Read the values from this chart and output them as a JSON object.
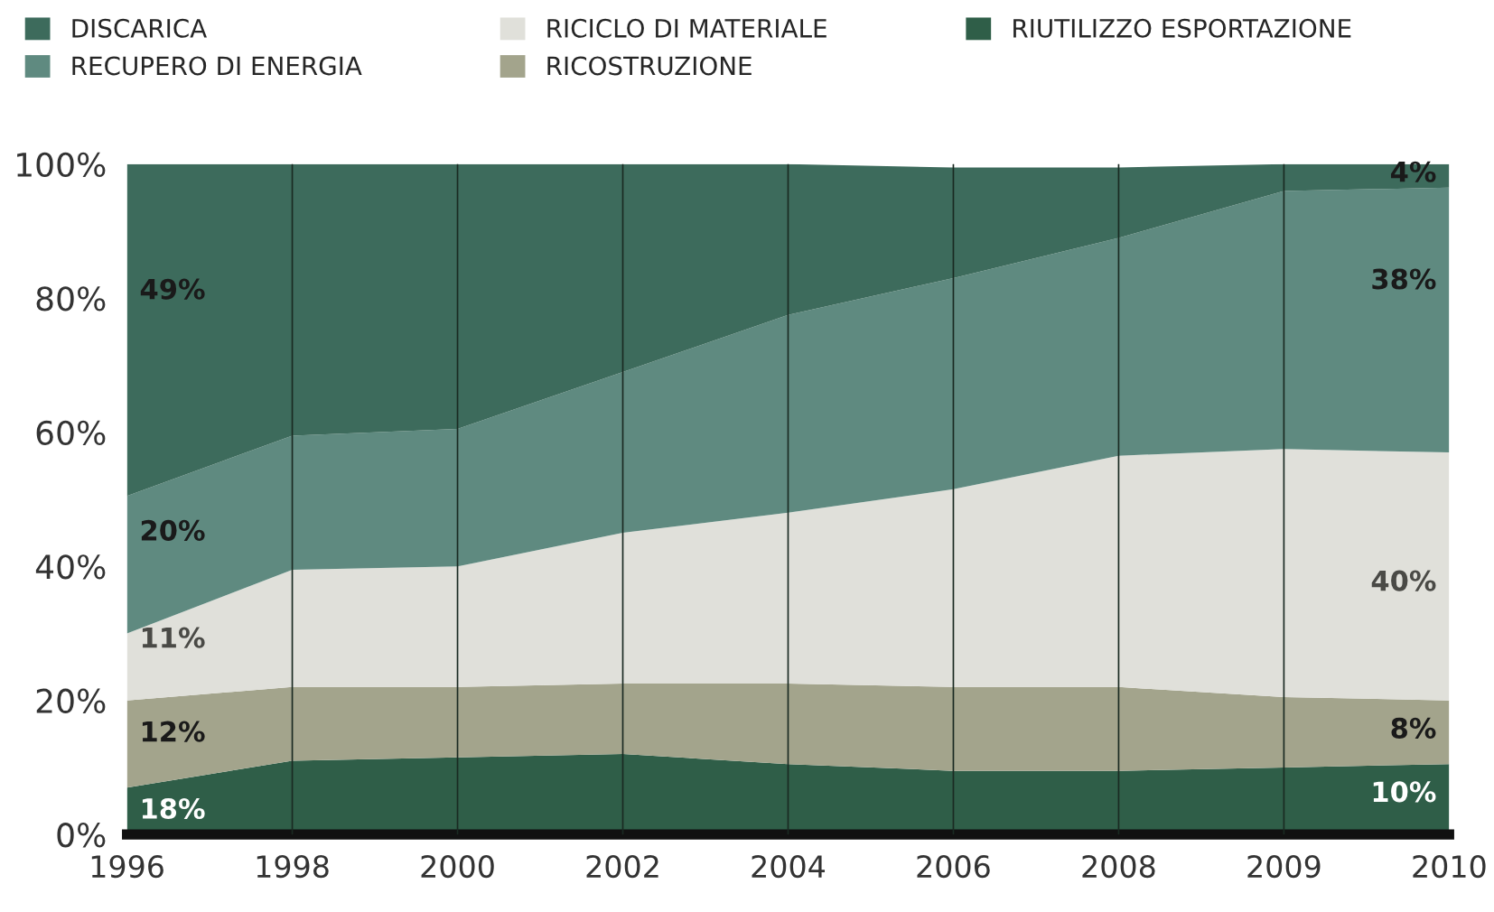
{
  "chart_data": {
    "type": "area",
    "stacked": true,
    "categories": [
      "1996",
      "1998",
      "2000",
      "2002",
      "2004",
      "2006",
      "2008",
      "2009",
      "2010"
    ],
    "series": [
      {
        "name": "RIUTILIZZO ESPORTAZIONE",
        "color": "#2f5e48",
        "values": [
          7,
          11,
          11.5,
          12,
          10.5,
          9.5,
          9.5,
          10,
          10.5
        ]
      },
      {
        "name": "RICOSTRUZIONE",
        "color": "#a3a48c",
        "values": [
          13,
          11,
          10.5,
          10.5,
          12,
          12.5,
          12.5,
          10.5,
          9.5
        ]
      },
      {
        "name": "RICICLO DI MATERIALE",
        "color": "#e0e0da",
        "values": [
          10,
          17.5,
          18,
          22.5,
          25.5,
          29.5,
          34.5,
          37,
          37
        ]
      },
      {
        "name": "RECUPERO DI ENERGIA",
        "color": "#5f8a80",
        "values": [
          20.5,
          20,
          20.5,
          24,
          29.5,
          31.5,
          32.5,
          38.5,
          39.5
        ]
      },
      {
        "name": "DISCARICA",
        "color": "#3d6b5c",
        "values": [
          49.5,
          40.5,
          39.5,
          31,
          22.5,
          16.5,
          10.5,
          4,
          3.5
        ]
      }
    ],
    "ylim": [
      0,
      100
    ],
    "yticks": [
      {
        "value": 0,
        "label": "0%"
      },
      {
        "value": 20,
        "label": "20%"
      },
      {
        "value": 40,
        "label": "40%"
      },
      {
        "value": 60,
        "label": "60%"
      },
      {
        "value": 80,
        "label": "80%"
      },
      {
        "value": 100,
        "label": "100%"
      }
    ],
    "grid": "x",
    "legend": "top",
    "annotations": [
      {
        "text": "49%",
        "x": "1996",
        "y": 81
      },
      {
        "text": "20%",
        "x": "1996",
        "y": 45
      },
      {
        "text": "11%",
        "x": "1996",
        "y": 29
      },
      {
        "text": "12%",
        "x": "1996",
        "y": 15
      },
      {
        "text": "18%",
        "x": "1996",
        "y": 3.5
      },
      {
        "text": "4%",
        "x": "2010",
        "y": 98.5
      },
      {
        "text": "38%",
        "x": "2010",
        "y": 82.5
      },
      {
        "text": "40%",
        "x": "2010",
        "y": 37.5
      },
      {
        "text": "8%",
        "x": "2010",
        "y": 15.5
      },
      {
        "text": "10%",
        "x": "2010",
        "y": 6
      }
    ]
  }
}
